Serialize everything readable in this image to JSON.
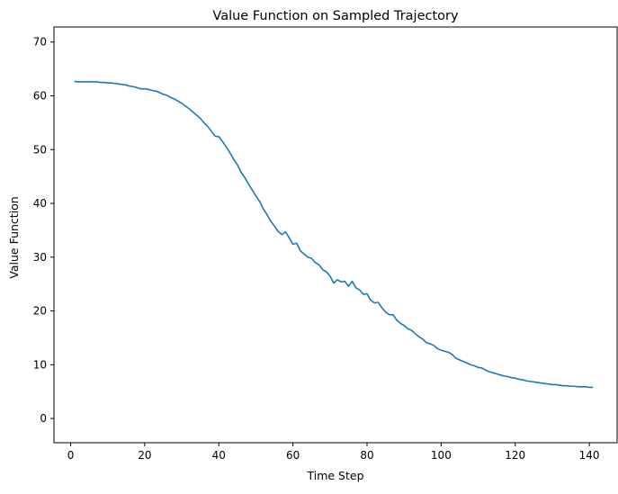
{
  "chart_data": {
    "type": "line",
    "title": "Value Function on Sampled Trajectory",
    "xlabel": "Time Step",
    "ylabel": "Value Function",
    "xlim": [
      -4.5,
      147.5
    ],
    "ylim": [
      -4.5,
      72.8
    ],
    "x_ticks": [
      0,
      20,
      40,
      60,
      80,
      100,
      120,
      140
    ],
    "y_ticks": [
      0,
      10,
      20,
      30,
      40,
      50,
      60,
      70
    ],
    "grid": false,
    "legend": "none",
    "line_color": "#1f77b4",
    "series": [
      {
        "x": [
          1,
          2,
          3,
          4,
          5,
          6,
          7,
          8,
          9,
          10,
          11,
          12,
          13,
          14,
          15,
          16,
          17,
          18,
          19,
          20,
          21,
          22,
          23,
          24,
          25,
          26,
          27,
          28,
          29,
          30,
          31,
          32,
          33,
          34,
          35,
          36,
          37,
          38,
          39,
          40,
          41,
          42,
          43,
          44,
          45,
          46,
          47,
          48,
          49,
          50,
          51,
          52,
          53,
          54,
          55,
          56,
          57,
          58,
          59,
          60,
          61,
          62,
          63,
          64,
          65,
          66,
          67,
          68,
          69,
          70,
          71,
          72,
          73,
          74,
          75,
          76,
          77,
          78,
          79,
          80,
          81,
          82,
          83,
          84,
          85,
          86,
          87,
          88,
          89,
          90,
          91,
          92,
          93,
          94,
          95,
          96,
          97,
          98,
          99,
          100,
          101,
          102,
          103,
          104,
          105,
          106,
          107,
          108,
          109,
          110,
          111,
          112,
          113,
          114,
          115,
          116,
          117,
          118,
          119,
          120,
          121,
          122,
          123,
          124,
          125,
          126,
          127,
          128,
          129,
          130,
          131,
          132,
          133,
          134,
          135,
          136,
          137,
          138,
          139,
          140,
          141
        ],
        "y": [
          62.7,
          62.6,
          62.6,
          62.6,
          62.6,
          62.6,
          62.6,
          62.5,
          62.5,
          62.4,
          62.4,
          62.3,
          62.2,
          62.1,
          62.0,
          61.8,
          61.7,
          61.5,
          61.3,
          61.3,
          61.2,
          61.0,
          60.9,
          60.6,
          60.3,
          60.1,
          59.7,
          59.4,
          59.0,
          58.6,
          58.1,
          57.6,
          57.0,
          56.4,
          55.8,
          55.0,
          54.3,
          53.4,
          52.5,
          52.4,
          51.5,
          50.5,
          49.4,
          48.2,
          47.2,
          45.8,
          44.8,
          43.6,
          42.5,
          41.4,
          40.4,
          39.0,
          37.9,
          36.7,
          35.8,
          34.8,
          34.2,
          34.7,
          33.6,
          32.4,
          32.6,
          31.2,
          30.6,
          30.0,
          29.8,
          29.0,
          28.6,
          27.7,
          27.3,
          26.5,
          25.2,
          25.8,
          25.4,
          25.5,
          24.6,
          25.5,
          24.3,
          23.9,
          23.1,
          23.2,
          22.0,
          21.5,
          21.6,
          20.6,
          19.8,
          19.3,
          19.3,
          18.3,
          17.7,
          17.3,
          16.7,
          16.4,
          15.8,
          15.2,
          14.8,
          14.1,
          13.9,
          13.6,
          13.0,
          12.7,
          12.5,
          12.3,
          11.9,
          11.2,
          10.9,
          10.6,
          10.3,
          10.0,
          9.8,
          9.5,
          9.4,
          9.0,
          8.7,
          8.5,
          8.3,
          8.1,
          7.9,
          7.8,
          7.6,
          7.5,
          7.3,
          7.2,
          7.0,
          6.9,
          6.8,
          6.7,
          6.6,
          6.5,
          6.4,
          6.3,
          6.3,
          6.2,
          6.1,
          6.1,
          6.0,
          6.0,
          5.9,
          5.9,
          5.9,
          5.8,
          5.8
        ]
      }
    ]
  }
}
